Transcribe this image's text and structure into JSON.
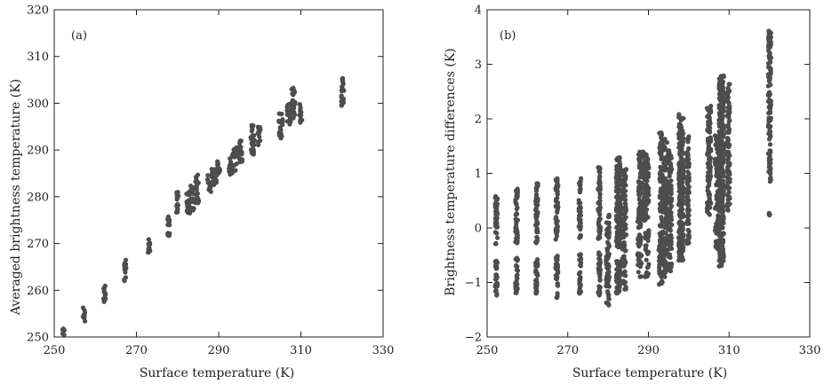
{
  "chart_data": [
    {
      "id": "a",
      "type": "scatter",
      "panel_label": "(a)",
      "xlabel": "Surface temperature (K)",
      "ylabel": "Averaged brightness temperature (K)",
      "xlim": [
        250,
        330
      ],
      "ylim": [
        250,
        320
      ],
      "xticks": [
        250,
        270,
        290,
        310,
        330
      ],
      "yticks": [
        250,
        260,
        270,
        280,
        290,
        300,
        310,
        320
      ],
      "marker_color": "#4d4d4d",
      "clusters": [
        {
          "x": [
            252,
            252.6
          ],
          "y": [
            250.2,
            251.9
          ]
        },
        {
          "x": [
            257,
            257.5
          ],
          "y": [
            253,
            256.4
          ]
        },
        {
          "x": [
            262,
            262.5
          ],
          "y": [
            257.5,
            261
          ]
        },
        {
          "x": [
            267,
            267.5
          ],
          "y": [
            262,
            266.5
          ]
        },
        {
          "x": [
            272.8,
            273.3
          ],
          "y": [
            267,
            271
          ]
        },
        {
          "x": [
            277.6,
            278.1
          ],
          "y": [
            271.5,
            276
          ]
        },
        {
          "x": [
            279.7,
            280.2
          ],
          "y": [
            276.5,
            281.5
          ]
        },
        {
          "x": [
            282.2,
            283
          ],
          "y": [
            276,
            281
          ]
        },
        {
          "x": [
            283.2,
            284
          ],
          "y": [
            277,
            282.5
          ]
        },
        {
          "x": [
            284.3,
            285.2
          ],
          "y": [
            278.5,
            285
          ]
        },
        {
          "x": [
            287.3,
            288.3
          ],
          "y": [
            281,
            285
          ]
        },
        {
          "x": [
            288.3,
            289.5
          ],
          "y": [
            282.5,
            286.5
          ]
        },
        {
          "x": [
            289.5,
            290.3
          ],
          "y": [
            284.5,
            288
          ]
        },
        {
          "x": [
            292.5,
            293.5
          ],
          "y": [
            284.5,
            289
          ]
        },
        {
          "x": [
            293.5,
            294.5
          ],
          "y": [
            285.5,
            290.5
          ]
        },
        {
          "x": [
            294.8,
            295.8
          ],
          "y": [
            287,
            292.5
          ]
        },
        {
          "x": [
            297.8,
            298.8
          ],
          "y": [
            289,
            295.5
          ]
        },
        {
          "x": [
            299.5,
            300.2
          ],
          "y": [
            291,
            295
          ]
        },
        {
          "x": [
            304.6,
            305.6
          ],
          "y": [
            292.5,
            298
          ]
        },
        {
          "x": [
            306.6,
            307.6
          ],
          "y": [
            295,
            300
          ]
        },
        {
          "x": [
            307.6,
            308.6
          ],
          "y": [
            296,
            303.5
          ]
        },
        {
          "x": [
            309.6,
            310.3
          ],
          "y": [
            295.5,
            300
          ]
        },
        {
          "x": [
            319.8,
            320.5
          ],
          "y": [
            299.5,
            305.5
          ]
        }
      ]
    },
    {
      "id": "b",
      "type": "scatter",
      "panel_label": "(b)",
      "xlabel": "Surface temperature (K)",
      "ylabel": "Brightness temperature differences (K)",
      "xlim": [
        250,
        330
      ],
      "ylim": [
        -2,
        4
      ],
      "xticks": [
        250,
        270,
        290,
        310,
        330
      ],
      "yticks": [
        -2,
        -1,
        0,
        1,
        2,
        3,
        4
      ],
      "marker_color": "#4d4d4d",
      "clusters": [
        {
          "x": [
            252,
            252.6
          ],
          "y": [
            -1.25,
            -0.55
          ]
        },
        {
          "x": [
            252,
            252.6
          ],
          "y": [
            -0.3,
            0.65
          ]
        },
        {
          "x": [
            257,
            257.6
          ],
          "y": [
            -1.25,
            -0.55
          ]
        },
        {
          "x": [
            257,
            257.6
          ],
          "y": [
            -0.3,
            0.72
          ]
        },
        {
          "x": [
            262,
            262.6
          ],
          "y": [
            -1.25,
            -0.55
          ]
        },
        {
          "x": [
            262,
            262.6
          ],
          "y": [
            -0.3,
            0.82
          ]
        },
        {
          "x": [
            267,
            267.6
          ],
          "y": [
            -1.28,
            -0.5
          ]
        },
        {
          "x": [
            267,
            267.6
          ],
          "y": [
            -0.25,
            0.92
          ]
        },
        {
          "x": [
            272.7,
            273.3
          ],
          "y": [
            -1.2,
            -0.45
          ]
        },
        {
          "x": [
            272.7,
            273.3
          ],
          "y": [
            -0.2,
            0.92
          ]
        },
        {
          "x": [
            277.5,
            278.1
          ],
          "y": [
            -1.25,
            -0.4
          ]
        },
        {
          "x": [
            277.5,
            278.1
          ],
          "y": [
            -0.2,
            1.15
          ]
        },
        {
          "x": [
            279.5,
            280.3
          ],
          "y": [
            -1.45,
            0.25
          ]
        },
        {
          "x": [
            282,
            283.2
          ],
          "y": [
            -1.2,
            -0.6
          ]
        },
        {
          "x": [
            282,
            283.2
          ],
          "y": [
            -0.4,
            1.3
          ]
        },
        {
          "x": [
            283.5,
            284.5
          ],
          "y": [
            -1.15,
            1.1
          ]
        },
        {
          "x": [
            287.3,
            288.3
          ],
          "y": [
            -0.9,
            0.3
          ]
        },
        {
          "x": [
            287.5,
            289.3
          ],
          "y": [
            0.1,
            1.4
          ]
        },
        {
          "x": [
            289.2,
            290.1
          ],
          "y": [
            -0.9,
            1.35
          ]
        },
        {
          "x": [
            292.5,
            293.5
          ],
          "y": [
            -1.1,
            -0.2
          ]
        },
        {
          "x": [
            292.7,
            293.7
          ],
          "y": [
            -0.5,
            1.75
          ]
        },
        {
          "x": [
            293.7,
            294.7
          ],
          "y": [
            -0.9,
            1.65
          ]
        },
        {
          "x": [
            294.8,
            295.8
          ],
          "y": [
            -0.8,
            1.45
          ]
        },
        {
          "x": [
            297.5,
            298.7
          ],
          "y": [
            -0.6,
            2.1
          ]
        },
        {
          "x": [
            299.5,
            300.1
          ],
          "y": [
            -0.3,
            1.7
          ]
        },
        {
          "x": [
            304.5,
            305.5
          ],
          "y": [
            0.2,
            2.3
          ]
        },
        {
          "x": [
            306.5,
            307.5
          ],
          "y": [
            -0.4,
            1.7
          ]
        },
        {
          "x": [
            307.5,
            308.7
          ],
          "y": [
            -0.75,
            2.8
          ]
        },
        {
          "x": [
            309.5,
            310.2
          ],
          "y": [
            0.3,
            2.65
          ]
        },
        {
          "x": [
            319.7,
            320.4
          ],
          "y": [
            0.85,
            3.68
          ]
        },
        {
          "x": [
            319.9,
            320.1
          ],
          "y": [
            0.22,
            0.28
          ]
        }
      ]
    }
  ]
}
